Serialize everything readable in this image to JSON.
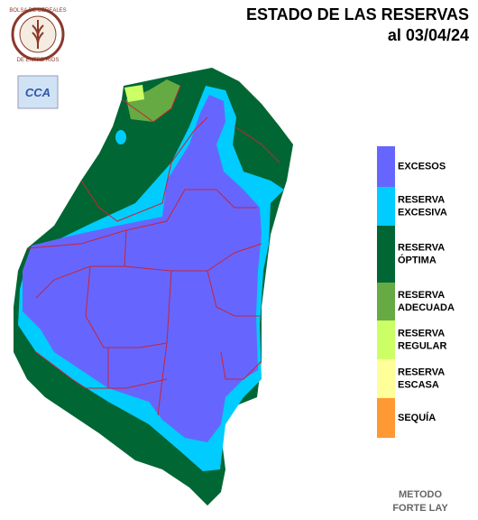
{
  "header": {
    "title": "ESTADO DE LAS RESERVAS",
    "date": "al 03/04/24"
  },
  "logo": {
    "top": "BOLSA DE CEREALES",
    "bottom": "DE ENTRE RIOS",
    "badge": "CCA"
  },
  "legend": [
    {
      "lines": [
        "EXCESOS"
      ],
      "color": "#6666ff"
    },
    {
      "lines": [
        "RESERVA",
        "EXCESIVA"
      ],
      "color": "#00ccff"
    },
    {
      "lines": [
        "RESERVA",
        "ÓPTIMA"
      ],
      "color": "#006633"
    },
    {
      "lines": [
        "RESERVA",
        "ADECUADA"
      ],
      "color": "#66aa44"
    },
    {
      "lines": [
        "RESERVA",
        "REGULAR"
      ],
      "color": "#ccff66"
    },
    {
      "lines": [
        "RESERVA",
        "ESCASA"
      ],
      "color": "#ffff99"
    },
    {
      "lines": [
        "SEQUÍA"
      ],
      "color": "#ff9933"
    }
  ],
  "footer": {
    "line1": "METODO",
    "line2": "FORTE LAY"
  }
}
